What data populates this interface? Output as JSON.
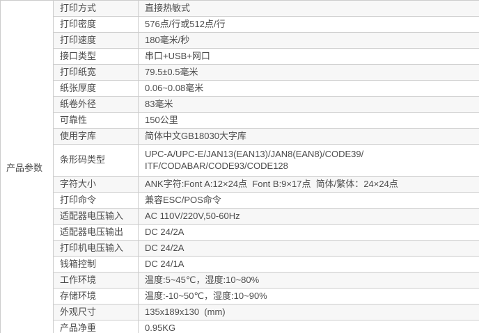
{
  "specs": {
    "section_label": "产品参数",
    "colors": {
      "band_background": "#f7f7f7",
      "border": "#cccccc",
      "text": "#4c4c4c"
    },
    "rows": [
      {
        "label": "打印方式",
        "value": "直接热敏式"
      },
      {
        "label": "打印密度",
        "value": "576点/行或512点/行"
      },
      {
        "label": "打印速度",
        "value": "180毫米/秒"
      },
      {
        "label": "接口类型",
        "value": "串口+USB+网口"
      },
      {
        "label": "打印纸宽",
        "value": "79.5±0.5毫米"
      },
      {
        "label": "纸张厚度",
        "value": "0.06~0.08毫米"
      },
      {
        "label": "纸卷外径",
        "value": "83毫米"
      },
      {
        "label": "可靠性",
        "value": "150公里"
      },
      {
        "label": "使用字库",
        "value": "简体中文GB18030大字库"
      },
      {
        "label": "条形码类型",
        "value": "UPC-A/UPC-E/JAN13(EAN13)/JAN8(EAN8)/CODE39/\nITF/CODABAR/CODE93/CODE128"
      },
      {
        "label": "字符大小",
        "value": "ANK字符:Font A:12×24点  Font B:9×17点  简体/繁体：24×24点"
      },
      {
        "label": "打印命令",
        "value": "兼容ESC/POS命令"
      },
      {
        "label": "适配器电压输入",
        "value": "AC 110V/220V,50-60Hz"
      },
      {
        "label": "适配器电压输出",
        "value": "DC 24/2A"
      },
      {
        "label": "打印机电压输入",
        "value": "DC 24/2A"
      },
      {
        "label": "钱箱控制",
        "value": "DC 24/1A"
      },
      {
        "label": "工作环境",
        "value": "温度:5~45℃，湿度:10~80%"
      },
      {
        "label": "存储环境",
        "value": "温度:-10~50℃，湿度:10~90%"
      },
      {
        "label": "外观尺寸",
        "value": "135x189x130  (mm)"
      },
      {
        "label": "产品净重",
        "value": "0.95KG"
      }
    ]
  }
}
